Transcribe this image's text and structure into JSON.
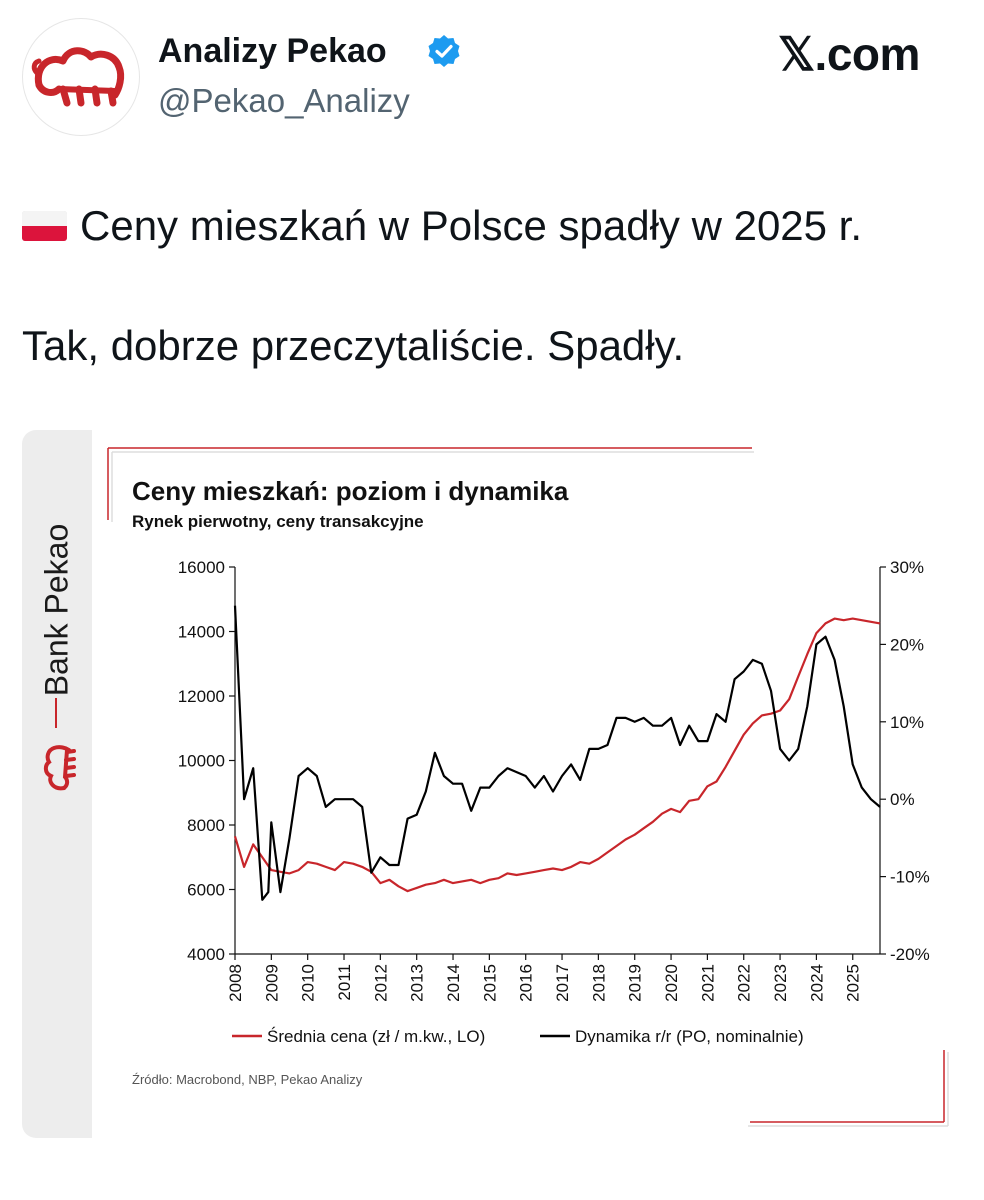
{
  "tweet": {
    "author_name": "Analizy Pekao",
    "handle": "@Pekao_Analizy",
    "site": "𝕏.com",
    "line1": "Ceny mieszkań w Polsce spadły w 2025 r.",
    "line2": "Tak, dobrze przeczytaliście. Spadły."
  },
  "card": {
    "brand": "Bank Pekao",
    "source": "Źródło: Macrobond, NBP, Pekao Analizy"
  },
  "colors": {
    "price": "#c8262b",
    "dynamics": "#000000",
    "verified": "#1d9bf0",
    "brand_red": "#c8262b"
  },
  "chart_data": {
    "type": "line",
    "title": "Ceny mieszkań: poziom i dynamika",
    "subtitle": "Rynek pierwotny, ceny transakcyjne",
    "x_ticks": [
      "2008",
      "2009",
      "2010",
      "2011",
      "2012",
      "2013",
      "2014",
      "2015",
      "2016",
      "2017",
      "2018",
      "2019",
      "2020",
      "2021",
      "2022",
      "2023",
      "2024",
      "2025"
    ],
    "x_range": [
      2008.0,
      2025.75
    ],
    "y_left": {
      "range": [
        4000,
        16000
      ],
      "ticks": [
        "4000",
        "6000",
        "8000",
        "10000",
        "12000",
        "14000",
        "16000"
      ]
    },
    "y_right": {
      "range": [
        -20,
        30
      ],
      "ticks": [
        "-20%",
        "-10%",
        "0%",
        "10%",
        "20%",
        "30%"
      ]
    },
    "series": [
      {
        "name": "Średnia cena (zł / m.kw., LO)",
        "axis": "left",
        "x": [
          2008.0,
          2008.25,
          2008.5,
          2008.75,
          2009.0,
          2009.25,
          2009.5,
          2009.75,
          2010.0,
          2010.25,
          2010.5,
          2010.75,
          2011.0,
          2011.25,
          2011.5,
          2011.75,
          2012.0,
          2012.25,
          2012.5,
          2012.75,
          2013.0,
          2013.25,
          2013.5,
          2013.75,
          2014.0,
          2014.25,
          2014.5,
          2014.75,
          2015.0,
          2015.25,
          2015.5,
          2015.75,
          2016.0,
          2016.25,
          2016.5,
          2016.75,
          2017.0,
          2017.25,
          2017.5,
          2017.75,
          2018.0,
          2018.25,
          2018.5,
          2018.75,
          2019.0,
          2019.25,
          2019.5,
          2019.75,
          2020.0,
          2020.25,
          2020.5,
          2020.75,
          2021.0,
          2021.25,
          2021.5,
          2021.75,
          2022.0,
          2022.25,
          2022.5,
          2022.75,
          2023.0,
          2023.25,
          2023.5,
          2023.75,
          2024.0,
          2024.25,
          2024.5,
          2024.75,
          2025.0,
          2025.25,
          2025.5,
          2025.75
        ],
        "values": [
          7650,
          6700,
          7400,
          7000,
          6600,
          6550,
          6500,
          6600,
          6850,
          6800,
          6700,
          6600,
          6850,
          6800,
          6700,
          6550,
          6200,
          6300,
          6100,
          5950,
          6050,
          6150,
          6200,
          6300,
          6200,
          6250,
          6300,
          6200,
          6300,
          6350,
          6500,
          6450,
          6500,
          6550,
          6600,
          6650,
          6600,
          6700,
          6850,
          6800,
          6950,
          7150,
          7350,
          7550,
          7700,
          7900,
          8100,
          8350,
          8500,
          8400,
          8750,
          8800,
          9200,
          9350,
          9800,
          10300,
          10800,
          11150,
          11400,
          11450,
          11550,
          11900,
          12600,
          13300,
          13950,
          14250,
          14400,
          14350,
          14400,
          14350,
          14300,
          14250
        ]
      },
      {
        "name": "Dynamika r/r (PO, nominalnie)",
        "axis": "right",
        "x": [
          2008.0,
          2008.25,
          2008.5,
          2008.75,
          2008.917,
          2009.0,
          2009.25,
          2009.5,
          2009.75,
          2010.0,
          2010.25,
          2010.5,
          2010.75,
          2011.0,
          2011.25,
          2011.5,
          2011.75,
          2012.0,
          2012.25,
          2012.5,
          2012.75,
          2013.0,
          2013.25,
          2013.5,
          2013.75,
          2014.0,
          2014.25,
          2014.5,
          2014.75,
          2015.0,
          2015.25,
          2015.5,
          2015.75,
          2016.0,
          2016.25,
          2016.5,
          2016.75,
          2017.0,
          2017.25,
          2017.5,
          2017.75,
          2018.0,
          2018.25,
          2018.5,
          2018.75,
          2019.0,
          2019.25,
          2019.5,
          2019.75,
          2020.0,
          2020.25,
          2020.5,
          2020.75,
          2021.0,
          2021.25,
          2021.5,
          2021.75,
          2022.0,
          2022.25,
          2022.5,
          2022.75,
          2023.0,
          2023.25,
          2023.5,
          2023.75,
          2024.0,
          2024.25,
          2024.5,
          2024.75,
          2025.0,
          2025.25,
          2025.5,
          2025.75
        ],
        "values": [
          25,
          0,
          4,
          -13,
          -12,
          -3,
          -12,
          -5,
          3,
          4,
          3,
          -1,
          0,
          0,
          0,
          -1,
          -9.5,
          -7.5,
          -8.5,
          -8.5,
          -2.5,
          -2,
          1,
          6,
          3,
          2,
          2,
          -1.5,
          1.5,
          1.5,
          3,
          4,
          3.5,
          3,
          1.5,
          3,
          1,
          3,
          4.5,
          2.5,
          6.5,
          6.5,
          7,
          10.5,
          10.5,
          10,
          10.5,
          9.5,
          9.5,
          10.5,
          7,
          9.5,
          7.5,
          7.5,
          11,
          10,
          15.5,
          16.5,
          18,
          17.5,
          14,
          6.5,
          5,
          6.5,
          12,
          20,
          21,
          18,
          12,
          4.5,
          1.5,
          0,
          -1
        ]
      }
    ],
    "grid": false,
    "legend_position": "bottom"
  }
}
